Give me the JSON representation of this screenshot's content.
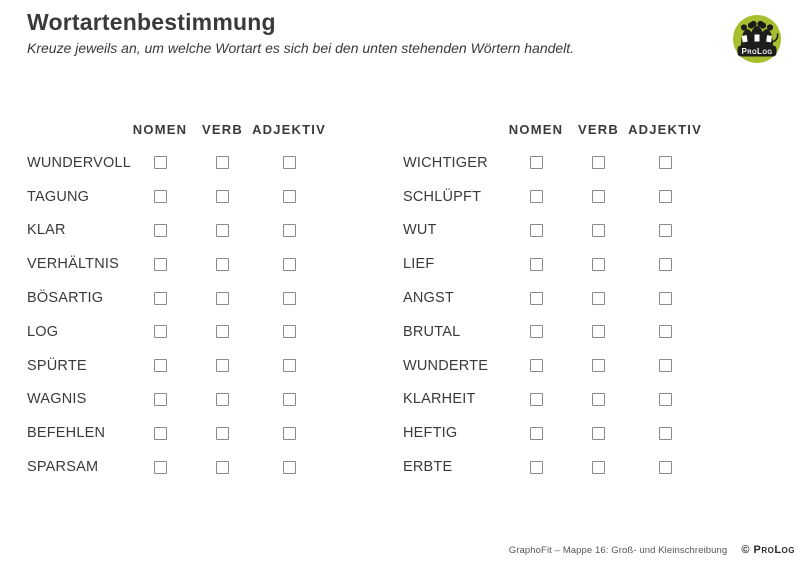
{
  "page": {
    "title": "Wortartenbestimmung",
    "subtitle": "Kreuze jeweils an, um welche Wortart es sich bei den unten stehenden Wörtern handelt."
  },
  "logo": {
    "text": "ProLog",
    "circle_color": "#a6bf2e",
    "ink_color": "#1d1d1b"
  },
  "columns": [
    "NOMEN",
    "VERB",
    "ADJEKTIV"
  ],
  "panels": [
    {
      "words": [
        "WUNDERVOLL",
        "TAGUNG",
        "KLAR",
        "VERHÄLTNIS",
        "BÖSARTIG",
        "LOG",
        "SPÜRTE",
        "WAGNIS",
        "BEFEHLEN",
        "SPARSAM"
      ]
    },
    {
      "words": [
        "WICHTIGER",
        "SCHLÜPFT",
        "WUT",
        "LIEF",
        "ANGST",
        "BRUTAL",
        "WUNDERTE",
        "KLARHEIT",
        "HEFTIG",
        "ERBTE"
      ]
    }
  ],
  "checkboxes": {
    "state": "unchecked",
    "border_color": "#8a8a8a"
  },
  "footer": {
    "source": "GraphoFit – Mappe 16: Groß- und Kleinschreibung",
    "copyright": "© ProLog"
  },
  "colors": {
    "text": "#3a3a39",
    "accent_green": "#a6bf2e"
  }
}
